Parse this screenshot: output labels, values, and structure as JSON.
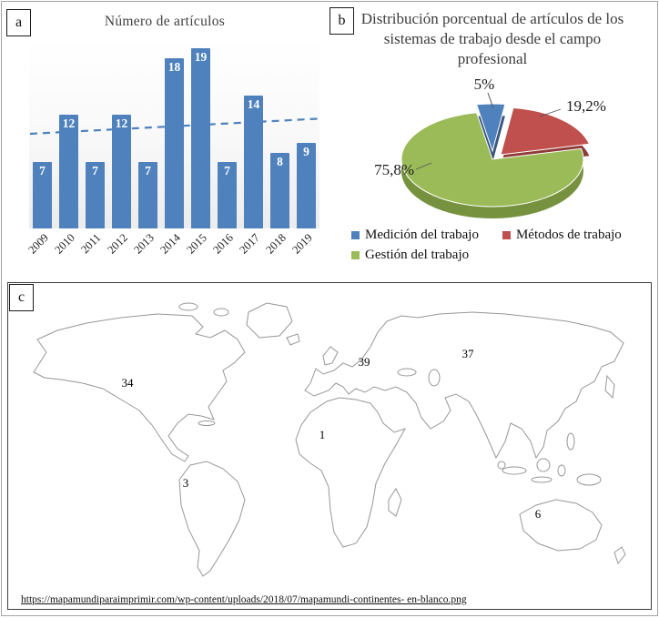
{
  "figure": {
    "panels": {
      "a": "a",
      "b": "b",
      "c": "c"
    }
  },
  "chart_data": [
    {
      "type": "bar",
      "title": "Número de artículos",
      "categories": [
        "2009",
        "2010",
        "2011",
        "2012",
        "2013",
        "2014",
        "2015",
        "2016",
        "2017",
        "2018",
        "2019"
      ],
      "values": [
        7,
        12,
        7,
        12,
        7,
        18,
        19,
        7,
        14,
        8,
        9
      ],
      "ylim": [
        0,
        20
      ],
      "bar_color": "#4f81bd",
      "data_labels": "white, inside top of bars",
      "x_tick_rotation": -45,
      "axes_hidden": true,
      "trendline": {
        "style": "dashed",
        "color": "#4f81bd",
        "start": 10,
        "end": 11.6
      }
    },
    {
      "type": "pie",
      "style": "3d-exploded",
      "title": "Distribución porcentual de artículos de los sistemas de trabajo desde el campo profesional",
      "labels": [
        "Medición del trabajo",
        "Métodos de trabajo",
        "Gestión del trabajo"
      ],
      "values": [
        5,
        19.2,
        75.8
      ],
      "value_labels": [
        "5%",
        "19,2%",
        "75,8%"
      ],
      "colors": [
        "#4f81bd",
        "#c0504d",
        "#9bbb59"
      ],
      "side_colors": [
        "#38567e",
        "#8f3b38",
        "#76923e"
      ],
      "legend_position": "bottom"
    },
    {
      "type": "map",
      "title": "",
      "regions": [
        "North America",
        "South America",
        "Africa",
        "Europe",
        "Asia",
        "Oceania"
      ],
      "values": [
        34,
        3,
        1,
        39,
        37,
        6
      ],
      "source_url": "https://mapamundiparaimprimir.com/wp-content/uploads/2018/07/mapamundi-continentes- en-blanco.png"
    }
  ]
}
